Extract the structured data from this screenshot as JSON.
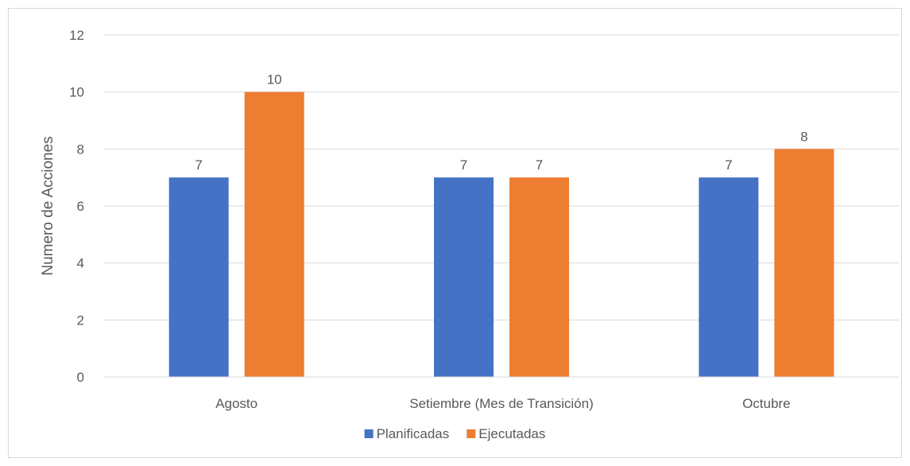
{
  "chart_data": {
    "type": "bar",
    "title": "",
    "xlabel": "",
    "ylabel": "Numero de Acciones",
    "ylim": [
      0,
      12
    ],
    "yticks": [
      0,
      2,
      4,
      6,
      8,
      10,
      12
    ],
    "grid": true,
    "legend_position": "bottom",
    "categories": [
      "Agosto",
      "Setiembre (Mes de Transición)",
      "Octubre"
    ],
    "series": [
      {
        "name": "Planificadas",
        "values": [
          7,
          7,
          7
        ],
        "color": "#4472C4"
      },
      {
        "name": "Ejecutadas",
        "values": [
          10,
          7,
          8
        ],
        "color": "#ED7D31"
      }
    ]
  }
}
